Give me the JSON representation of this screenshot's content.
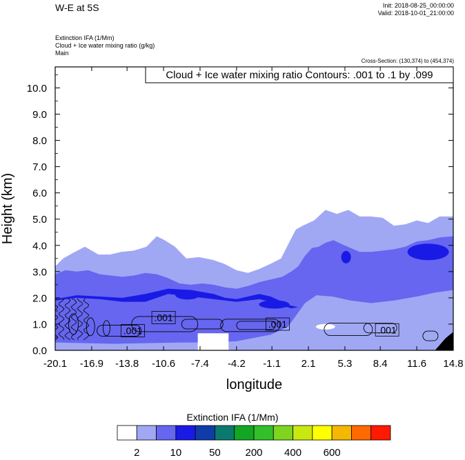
{
  "header": {
    "title": "W-E at 5S",
    "init": "Init: 2018-08-25_00:00:00",
    "valid": "Valid: 2018-10-01_21:00:00",
    "var1": "Extinction IFA   (1/Mm)",
    "var2": "Cloud + Ice water mixing ratio   (g/kg)",
    "var3": "Main",
    "cross_section": "Cross-Section: (130,374) to (454,374)"
  },
  "chart_data": {
    "type": "heatmap",
    "title": "W-E at 5S",
    "xlabel": "longitude",
    "ylabel": "Height (km)",
    "xlim": [
      -20.1,
      14.8
    ],
    "ylim": [
      0.0,
      10.8
    ],
    "xticks": [
      "-20.1",
      "-16.9",
      "-13.8",
      "-10.6",
      "-7.4",
      "-4.2",
      "-1.1",
      "2.1",
      "5.3",
      "8.4",
      "11.6",
      "14.8"
    ],
    "xtick_values": [
      -20.1,
      -16.9,
      -13.8,
      -10.6,
      -7.4,
      -4.2,
      -1.1,
      2.1,
      5.3,
      8.4,
      11.6,
      14.8
    ],
    "yticks": [
      "0.0",
      "1.0",
      "2.0",
      "3.0",
      "4.0",
      "5.0",
      "6.0",
      "7.0",
      "8.0",
      "9.0",
      "10.0"
    ],
    "ytick_values": [
      0,
      1,
      2,
      3,
      4,
      5,
      6,
      7,
      8,
      9,
      10
    ],
    "contour_info": "Cloud + Ice water mixing ratio Contours: .001 to .1 by .099",
    "contour_labels": [
      {
        "text": ".001",
        "x": -13.3,
        "y": 0.75
      },
      {
        "text": ".001",
        "x": -10.6,
        "y": 1.25
      },
      {
        "text": ".001",
        "x": -0.6,
        "y": 1.0
      },
      {
        "text": ".001",
        "x": 9.0,
        "y": 0.78
      }
    ],
    "colorbar": {
      "title": "Extinction IFA  (1/Mm)",
      "colors": [
        "#ffffff",
        "#a0a8f4",
        "#6666f0",
        "#1a1ae6",
        "#0f3ca8",
        "#0a7a6e",
        "#13a622",
        "#33bf2a",
        "#7ed41e",
        "#c8e80f",
        "#ffff00",
        "#f5b800",
        "#ff6a00",
        "#ff1a00"
      ],
      "labels": [
        "2",
        "10",
        "50",
        "200",
        "400",
        "600"
      ]
    },
    "layers": [
      {
        "name": "light",
        "level": 1,
        "top": [
          [
            -20.1,
            3.2
          ],
          [
            -19.4,
            3.5
          ],
          [
            -18.6,
            3.7
          ],
          [
            -17.5,
            3.95
          ],
          [
            -16.3,
            3.65
          ],
          [
            -15.3,
            3.65
          ],
          [
            -14.3,
            3.75
          ],
          [
            -13.2,
            3.8
          ],
          [
            -12.1,
            3.95
          ],
          [
            -11.2,
            4.35
          ],
          [
            -10.5,
            4.2
          ],
          [
            -9.6,
            3.95
          ],
          [
            -8.6,
            3.5
          ],
          [
            -7.5,
            3.55
          ],
          [
            -6.3,
            3.45
          ],
          [
            -5.3,
            3.3
          ],
          [
            -4.2,
            3.05
          ],
          [
            -3.2,
            2.95
          ],
          [
            -2.2,
            3.1
          ],
          [
            -1.2,
            3.3
          ],
          [
            -0.3,
            3.5
          ],
          [
            0.4,
            4.1
          ],
          [
            1.0,
            4.6
          ],
          [
            1.6,
            4.75
          ],
          [
            2.6,
            4.95
          ],
          [
            3.6,
            5.35
          ],
          [
            4.6,
            5.2
          ],
          [
            5.6,
            5.35
          ],
          [
            6.6,
            5.1
          ],
          [
            7.6,
            5.1
          ],
          [
            8.6,
            5.05
          ],
          [
            9.6,
            4.75
          ],
          [
            10.6,
            4.8
          ],
          [
            11.6,
            4.95
          ],
          [
            12.6,
            4.85
          ],
          [
            13.6,
            5.1
          ],
          [
            14.8,
            5.1
          ]
        ],
        "bottom": [
          [
            -20.1,
            0.0
          ],
          [
            14.8,
            0.0
          ]
        ]
      },
      {
        "name": "medium",
        "level": 2,
        "top": [
          [
            -20.1,
            2.9
          ],
          [
            -19.2,
            3.05
          ],
          [
            -18.2,
            3.0
          ],
          [
            -17.2,
            3.05
          ],
          [
            -16.2,
            2.9
          ],
          [
            -15.2,
            2.85
          ],
          [
            -14.2,
            2.8
          ],
          [
            -13.2,
            2.85
          ],
          [
            -12.2,
            2.95
          ],
          [
            -11.2,
            2.9
          ],
          [
            -10.2,
            2.75
          ],
          [
            -9.2,
            2.55
          ],
          [
            -8.2,
            2.5
          ],
          [
            -7.2,
            2.55
          ],
          [
            -6.2,
            2.5
          ],
          [
            -5.2,
            2.4
          ],
          [
            -4.2,
            2.35
          ],
          [
            -3.2,
            2.45
          ],
          [
            -2.2,
            2.6
          ],
          [
            -1.2,
            2.7
          ],
          [
            -0.2,
            2.8
          ],
          [
            0.6,
            3.0
          ],
          [
            1.2,
            3.2
          ],
          [
            1.8,
            3.6
          ],
          [
            2.4,
            3.9
          ],
          [
            3.0,
            3.95
          ],
          [
            3.6,
            4.1
          ],
          [
            4.3,
            4.2
          ],
          [
            5.0,
            4.05
          ],
          [
            5.8,
            3.9
          ],
          [
            6.6,
            3.75
          ],
          [
            7.6,
            3.75
          ],
          [
            8.6,
            3.8
          ],
          [
            9.6,
            3.85
          ],
          [
            10.6,
            3.95
          ],
          [
            11.6,
            4.15
          ],
          [
            12.6,
            4.2
          ],
          [
            13.6,
            4.3
          ],
          [
            14.8,
            4.35
          ]
        ],
        "bottom": [
          [
            -20.1,
            0.3
          ],
          [
            -15.0,
            0.25
          ],
          [
            -9.0,
            0.3
          ],
          [
            -6.5,
            0.3
          ],
          [
            -4.2,
            0.35
          ],
          [
            -1.2,
            0.6
          ],
          [
            0.3,
            0.9
          ],
          [
            1.8,
            1.8
          ],
          [
            2.8,
            2.1
          ],
          [
            4.2,
            2.05
          ],
          [
            5.8,
            1.9
          ],
          [
            7.6,
            1.8
          ],
          [
            9.6,
            1.9
          ],
          [
            11.6,
            2.05
          ],
          [
            13.2,
            2.2
          ],
          [
            14.8,
            2.3
          ]
        ]
      },
      {
        "name": "blue",
        "level": 3,
        "top": [
          [
            -20.1,
            1.95
          ],
          [
            -18.2,
            2.1
          ],
          [
            -16.2,
            2.05
          ],
          [
            -14.2,
            2.0
          ],
          [
            -12.2,
            2.15
          ],
          [
            -10.2,
            2.35
          ],
          [
            -8.2,
            2.3
          ],
          [
            -6.2,
            2.15
          ],
          [
            -5.2,
            2.0
          ],
          [
            -4.2,
            1.95
          ],
          [
            -3.2,
            2.05
          ],
          [
            -2.2,
            2.15
          ],
          [
            -1.2,
            2.05
          ],
          [
            -0.2,
            1.85
          ],
          [
            0.6,
            1.7
          ],
          [
            1.2,
            1.65
          ]
        ],
        "bottom": [
          [
            -20.1,
            1.9
          ],
          [
            -18.2,
            2.0
          ],
          [
            -16.2,
            1.95
          ],
          [
            -14.2,
            1.85
          ],
          [
            -12.2,
            1.85
          ],
          [
            -10.2,
            2.15
          ],
          [
            -8.2,
            2.05
          ],
          [
            -6.2,
            1.95
          ],
          [
            -5.2,
            1.9
          ],
          [
            -4.2,
            1.85
          ],
          [
            -3.2,
            1.9
          ],
          [
            -2.2,
            1.95
          ],
          [
            -1.2,
            1.85
          ],
          [
            -0.2,
            1.7
          ],
          [
            0.6,
            1.6
          ],
          [
            1.2,
            1.65
          ]
        ]
      }
    ]
  }
}
